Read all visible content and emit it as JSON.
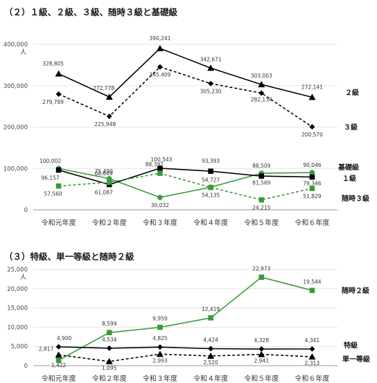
{
  "titles": {
    "section2": "（２）１級、２級、３級、随時３級と基礎級",
    "section3": "（３）特級、単一等級と随時２級"
  },
  "colors": {
    "black": "#000000",
    "green": "#3a9a3a"
  },
  "chart_data": [
    {
      "type": "line",
      "title": "（２）１級、２級、３級、随時３級と基礎級",
      "unit": "人",
      "categories": [
        "令和元年度",
        "令和２年度",
        "令和３年度",
        "令和４年度",
        "令和５年度",
        "令和６年度"
      ],
      "ylim": [
        0,
        400000
      ],
      "yticks": [
        0,
        100000,
        200000,
        300000,
        400000
      ],
      "ytick_labels": [
        "0",
        "100,000",
        "200,000",
        "300,000",
        "400,000"
      ],
      "series": [
        {
          "name": "２級",
          "color": "#000000",
          "dash": false,
          "marker": "triangle",
          "values": [
            328805,
            272778,
            390241,
            342671,
            303003,
            272141
          ],
          "labels": [
            "328,805",
            "272,778",
            "390,241",
            "342,671",
            "303,003",
            "272,141"
          ]
        },
        {
          "name": "３級",
          "color": "#000000",
          "dash": true,
          "marker": "diamond",
          "values": [
            279789,
            225948,
            345409,
            305230,
            282134,
            200570
          ],
          "labels": [
            "279,789",
            "225,948",
            "345,409",
            "305,230",
            "282,134",
            "200,570"
          ]
        },
        {
          "name": "基礎級",
          "color": "#3a9a3a",
          "dash": false,
          "marker": "circle",
          "values": [
            100002,
            75490,
            30032,
            54727,
            88509,
            90046
          ],
          "labels": [
            "100,002",
            "75,490",
            "30,032",
            "54,727",
            "88,509",
            "90,046"
          ]
        },
        {
          "name": "１級",
          "color": "#000000",
          "dash": false,
          "marker": "square",
          "values": [
            96157,
            61087,
            100543,
            93393,
            81569,
            79346
          ],
          "labels": [
            "96,157",
            "61,087",
            "100,543",
            "93,393",
            "81,569",
            "79,346"
          ]
        },
        {
          "name": "随時３級",
          "color": "#3a9a3a",
          "dash": true,
          "marker": "square",
          "values": [
            57560,
            66669,
            88392,
            54135,
            24215,
            51829
          ],
          "labels": [
            "57,560",
            "66,669",
            "88,392",
            "54,135",
            "24,215",
            "51,829"
          ]
        }
      ]
    },
    {
      "type": "line",
      "title": "（３）特級、単一等級と随時２級",
      "unit": "人",
      "categories": [
        "令和元年度",
        "令和２年度",
        "令和３年度",
        "令和４年度",
        "令和５年度",
        "令和６年度"
      ],
      "ylim": [
        0,
        25000
      ],
      "yticks": [
        0,
        5000,
        10000,
        15000,
        20000,
        25000
      ],
      "ytick_labels": [
        "0",
        "5,000",
        "10,000",
        "15,000",
        "20,000",
        "25,000"
      ],
      "series": [
        {
          "name": "随時２級",
          "color": "#3a9a3a",
          "dash": false,
          "marker": "square",
          "values": [
            1422,
            8599,
            9959,
            12419,
            22973,
            19544
          ],
          "labels": [
            "1,422",
            "8,599",
            "9,959",
            "12,419",
            "22,973",
            "19,544"
          ]
        },
        {
          "name": "特級",
          "color": "#000000",
          "dash": false,
          "marker": "diamond",
          "values": [
            4900,
            4534,
            4825,
            4424,
            4328,
            4341
          ],
          "labels": [
            "4,900",
            "4,534",
            "4,825",
            "4,424",
            "4,328",
            "4,341"
          ]
        },
        {
          "name": "単一等級",
          "color": "#000000",
          "dash": true,
          "marker": "triangle",
          "values": [
            2817,
            1095,
            2993,
            2520,
            2941,
            2313
          ],
          "labels": [
            "2,817",
            "1,095",
            "2,993",
            "2,520",
            "2,941",
            "2,313"
          ]
        }
      ]
    }
  ]
}
